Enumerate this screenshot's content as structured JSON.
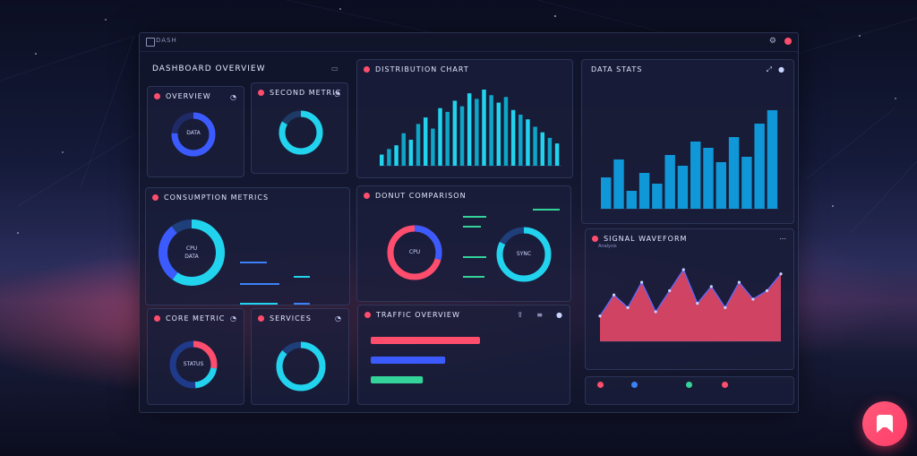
{
  "window": {
    "title": "DASH"
  },
  "section_left_title": "DASHBOARD OVERVIEW",
  "cards": {
    "ring1": {
      "title": "OVERVIEW",
      "center": "DATA"
    },
    "ring2": {
      "title": "SECOND METRIC"
    },
    "bars": {
      "title": "DISTRIBUTION CHART"
    },
    "right_bars": {
      "title": "DATA STATS"
    },
    "donut_large": {
      "title": "CONSUMPTION METRICS",
      "center_top": "CPU",
      "center_bottom": "DATA"
    },
    "donut_pair": {
      "title": "DONUT COMPARISON",
      "center_left": "CPU",
      "center_right": "SYNC"
    },
    "wave": {
      "title": "SIGNAL WAVEFORM",
      "subtitle": "Analysis"
    },
    "ring3": {
      "title": "CORE METRIC",
      "center": "STATUS"
    },
    "ring4": {
      "title": "SERVICES"
    },
    "hbars": {
      "title": "TRAFFIC OVERVIEW"
    }
  },
  "colors": {
    "accent_pink": "#ff4d6d",
    "accent_cyan": "#22d3ee",
    "accent_blue": "#3b5bff",
    "accent_green": "#34d399"
  },
  "icons": [
    "settings-icon",
    "close-icon",
    "expand-icon",
    "more-icon",
    "share-icon"
  ],
  "chart_data": [
    {
      "type": "bar",
      "values": [
        12,
        18,
        22,
        35,
        28,
        45,
        52,
        40,
        62,
        58,
        70,
        64,
        78,
        72,
        82,
        76,
        68,
        74,
        60,
        55,
        50,
        42,
        36,
        30,
        24
      ]
    },
    {
      "type": "bar",
      "values": [
        35,
        55,
        20,
        40,
        28,
        60,
        48,
        75,
        68,
        52,
        80,
        58,
        95,
        110
      ]
    },
    {
      "type": "bar",
      "values": [
        88,
        60,
        42
      ]
    },
    {
      "type": "area",
      "values": [
        30,
        55,
        40,
        70,
        35,
        60,
        85,
        45,
        65,
        40,
        70,
        50,
        60,
        80
      ]
    }
  ]
}
